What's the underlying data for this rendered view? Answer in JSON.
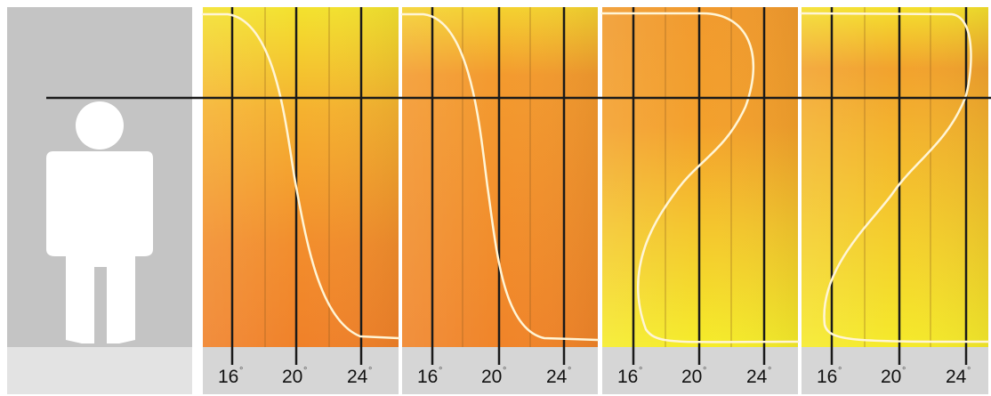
{
  "figure": {
    "description_free": true,
    "colors": {
      "warm": "#f08a2e",
      "warm_mid": "#f5a82f",
      "cool": "#f1e02c",
      "curve": "#fff5d6",
      "grid": "#1a1a1a",
      "label_band": "#d6d6d6",
      "person": "#ffffff"
    },
    "person_icon": "standing-person-icon",
    "axis_ticks": [
      {
        "value": 16,
        "label": "16",
        "unit": "°"
      },
      {
        "value": 20,
        "label": "20",
        "unit": "°"
      },
      {
        "value": 24,
        "label": "24",
        "unit": "°"
      }
    ],
    "panels": [
      {
        "id": "panel-1",
        "gradient": "yellow-top-orange-bottom"
      },
      {
        "id": "panel-2",
        "gradient": "orange"
      },
      {
        "id": "panel-3",
        "gradient": "orange-top-yellow-bottom"
      },
      {
        "id": "panel-4",
        "gradient": "yellow-with-orange-band"
      }
    ]
  }
}
